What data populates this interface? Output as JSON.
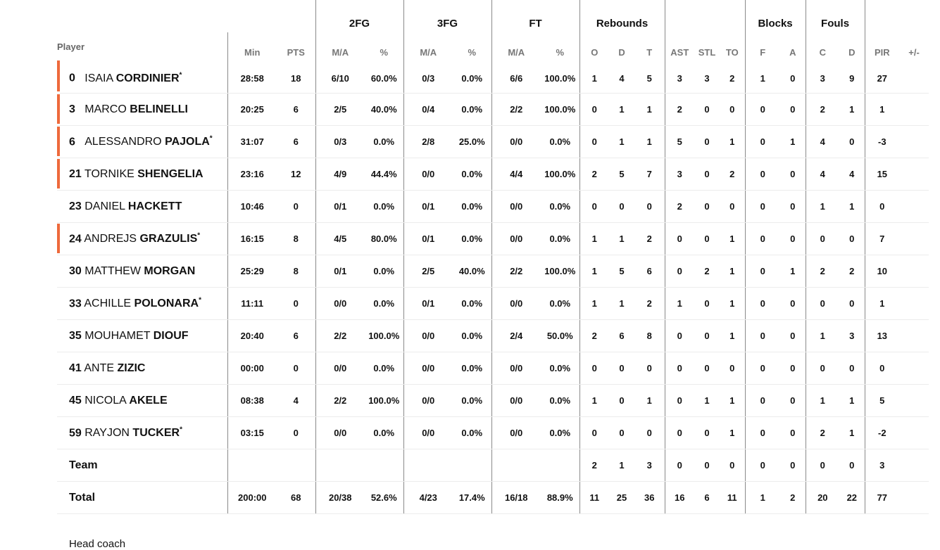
{
  "headers": {
    "groups": {
      "fg2": "2FG",
      "fg3": "3FG",
      "ft": "FT",
      "rebounds": "Rebounds",
      "blocks": "Blocks",
      "fouls": "Fouls"
    },
    "columns": {
      "player": "Player",
      "min": "Min",
      "pts": "PTS",
      "fg2_ma": "M/A",
      "fg2_pct": "%",
      "fg3_ma": "M/A",
      "fg3_pct": "%",
      "ft_ma": "M/A",
      "ft_pct": "%",
      "reb_o": "O",
      "reb_d": "D",
      "reb_t": "T",
      "ast": "AST",
      "stl": "STL",
      "to": "TO",
      "blk_f": "F",
      "blk_a": "A",
      "foul_c": "C",
      "foul_d": "D",
      "pir": "PIR",
      "pm": "+/-"
    }
  },
  "players": [
    {
      "num": "0",
      "first": "ISAIA",
      "last": "CORDINIER",
      "starter": true,
      "accent": true,
      "min": "28:58",
      "pts": "18",
      "fg2_ma": "6/10",
      "fg2_pct": "60.0%",
      "fg3_ma": "0/3",
      "fg3_pct": "0.0%",
      "ft_ma": "6/6",
      "ft_pct": "100.0%",
      "reb_o": "1",
      "reb_d": "4",
      "reb_t": "5",
      "ast": "3",
      "stl": "3",
      "to": "2",
      "blk_f": "1",
      "blk_a": "0",
      "foul_c": "3",
      "foul_d": "9",
      "pir": "27",
      "pm": ""
    },
    {
      "num": "3",
      "first": "MARCO",
      "last": "BELINELLI",
      "starter": false,
      "accent": true,
      "min": "20:25",
      "pts": "6",
      "fg2_ma": "2/5",
      "fg2_pct": "40.0%",
      "fg3_ma": "0/4",
      "fg3_pct": "0.0%",
      "ft_ma": "2/2",
      "ft_pct": "100.0%",
      "reb_o": "0",
      "reb_d": "1",
      "reb_t": "1",
      "ast": "2",
      "stl": "0",
      "to": "0",
      "blk_f": "0",
      "blk_a": "0",
      "foul_c": "2",
      "foul_d": "1",
      "pir": "1",
      "pm": ""
    },
    {
      "num": "6",
      "first": "ALESSANDRO",
      "last": "PAJOLA",
      "starter": true,
      "accent": true,
      "min": "31:07",
      "pts": "6",
      "fg2_ma": "0/3",
      "fg2_pct": "0.0%",
      "fg3_ma": "2/8",
      "fg3_pct": "25.0%",
      "ft_ma": "0/0",
      "ft_pct": "0.0%",
      "reb_o": "0",
      "reb_d": "1",
      "reb_t": "1",
      "ast": "5",
      "stl": "0",
      "to": "1",
      "blk_f": "0",
      "blk_a": "1",
      "foul_c": "4",
      "foul_d": "0",
      "pir": "-3",
      "pm": ""
    },
    {
      "num": "21",
      "first": "TORNIKE",
      "last": "SHENGELIA",
      "starter": false,
      "accent": true,
      "min": "23:16",
      "pts": "12",
      "fg2_ma": "4/9",
      "fg2_pct": "44.4%",
      "fg3_ma": "0/0",
      "fg3_pct": "0.0%",
      "ft_ma": "4/4",
      "ft_pct": "100.0%",
      "reb_o": "2",
      "reb_d": "5",
      "reb_t": "7",
      "ast": "3",
      "stl": "0",
      "to": "2",
      "blk_f": "0",
      "blk_a": "0",
      "foul_c": "4",
      "foul_d": "4",
      "pir": "15",
      "pm": ""
    },
    {
      "num": "23",
      "first": "DANIEL",
      "last": "HACKETT",
      "starter": false,
      "accent": false,
      "min": "10:46",
      "pts": "0",
      "fg2_ma": "0/1",
      "fg2_pct": "0.0%",
      "fg3_ma": "0/1",
      "fg3_pct": "0.0%",
      "ft_ma": "0/0",
      "ft_pct": "0.0%",
      "reb_o": "0",
      "reb_d": "0",
      "reb_t": "0",
      "ast": "2",
      "stl": "0",
      "to": "0",
      "blk_f": "0",
      "blk_a": "0",
      "foul_c": "1",
      "foul_d": "1",
      "pir": "0",
      "pm": ""
    },
    {
      "num": "24",
      "first": "ANDREJS",
      "last": "GRAZULIS",
      "starter": true,
      "accent": true,
      "min": "16:15",
      "pts": "8",
      "fg2_ma": "4/5",
      "fg2_pct": "80.0%",
      "fg3_ma": "0/1",
      "fg3_pct": "0.0%",
      "ft_ma": "0/0",
      "ft_pct": "0.0%",
      "reb_o": "1",
      "reb_d": "1",
      "reb_t": "2",
      "ast": "0",
      "stl": "0",
      "to": "1",
      "blk_f": "0",
      "blk_a": "0",
      "foul_c": "0",
      "foul_d": "0",
      "pir": "7",
      "pm": ""
    },
    {
      "num": "30",
      "first": "MATTHEW",
      "last": "MORGAN",
      "starter": false,
      "accent": false,
      "min": "25:29",
      "pts": "8",
      "fg2_ma": "0/1",
      "fg2_pct": "0.0%",
      "fg3_ma": "2/5",
      "fg3_pct": "40.0%",
      "ft_ma": "2/2",
      "ft_pct": "100.0%",
      "reb_o": "1",
      "reb_d": "5",
      "reb_t": "6",
      "ast": "0",
      "stl": "2",
      "to": "1",
      "blk_f": "0",
      "blk_a": "1",
      "foul_c": "2",
      "foul_d": "2",
      "pir": "10",
      "pm": ""
    },
    {
      "num": "33",
      "first": "ACHILLE",
      "last": "POLONARA",
      "starter": true,
      "accent": false,
      "min": "11:11",
      "pts": "0",
      "fg2_ma": "0/0",
      "fg2_pct": "0.0%",
      "fg3_ma": "0/1",
      "fg3_pct": "0.0%",
      "ft_ma": "0/0",
      "ft_pct": "0.0%",
      "reb_o": "1",
      "reb_d": "1",
      "reb_t": "2",
      "ast": "1",
      "stl": "0",
      "to": "1",
      "blk_f": "0",
      "blk_a": "0",
      "foul_c": "0",
      "foul_d": "0",
      "pir": "1",
      "pm": ""
    },
    {
      "num": "35",
      "first": "MOUHAMET",
      "last": "DIOUF",
      "starter": false,
      "accent": false,
      "min": "20:40",
      "pts": "6",
      "fg2_ma": "2/2",
      "fg2_pct": "100.0%",
      "fg3_ma": "0/0",
      "fg3_pct": "0.0%",
      "ft_ma": "2/4",
      "ft_pct": "50.0%",
      "reb_o": "2",
      "reb_d": "6",
      "reb_t": "8",
      "ast": "0",
      "stl": "0",
      "to": "1",
      "blk_f": "0",
      "blk_a": "0",
      "foul_c": "1",
      "foul_d": "3",
      "pir": "13",
      "pm": ""
    },
    {
      "num": "41",
      "first": "ANTE",
      "last": "ZIZIC",
      "starter": false,
      "accent": false,
      "min": "00:00",
      "pts": "0",
      "fg2_ma": "0/0",
      "fg2_pct": "0.0%",
      "fg3_ma": "0/0",
      "fg3_pct": "0.0%",
      "ft_ma": "0/0",
      "ft_pct": "0.0%",
      "reb_o": "0",
      "reb_d": "0",
      "reb_t": "0",
      "ast": "0",
      "stl": "0",
      "to": "0",
      "blk_f": "0",
      "blk_a": "0",
      "foul_c": "0",
      "foul_d": "0",
      "pir": "0",
      "pm": ""
    },
    {
      "num": "45",
      "first": "NICOLA",
      "last": "AKELE",
      "starter": false,
      "accent": false,
      "min": "08:38",
      "pts": "4",
      "fg2_ma": "2/2",
      "fg2_pct": "100.0%",
      "fg3_ma": "0/0",
      "fg3_pct": "0.0%",
      "ft_ma": "0/0",
      "ft_pct": "0.0%",
      "reb_o": "1",
      "reb_d": "0",
      "reb_t": "1",
      "ast": "0",
      "stl": "1",
      "to": "1",
      "blk_f": "0",
      "blk_a": "0",
      "foul_c": "1",
      "foul_d": "1",
      "pir": "5",
      "pm": ""
    },
    {
      "num": "59",
      "first": "RAYJON",
      "last": "TUCKER",
      "starter": true,
      "accent": false,
      "min": "03:15",
      "pts": "0",
      "fg2_ma": "0/0",
      "fg2_pct": "0.0%",
      "fg3_ma": "0/0",
      "fg3_pct": "0.0%",
      "ft_ma": "0/0",
      "ft_pct": "0.0%",
      "reb_o": "0",
      "reb_d": "0",
      "reb_t": "0",
      "ast": "0",
      "stl": "0",
      "to": "1",
      "blk_f": "0",
      "blk_a": "0",
      "foul_c": "2",
      "foul_d": "1",
      "pir": "-2",
      "pm": ""
    }
  ],
  "team": {
    "label": "Team",
    "min": "",
    "pts": "",
    "fg2_ma": "",
    "fg2_pct": "",
    "fg3_ma": "",
    "fg3_pct": "",
    "ft_ma": "",
    "ft_pct": "",
    "reb_o": "2",
    "reb_d": "1",
    "reb_t": "3",
    "ast": "0",
    "stl": "0",
    "to": "0",
    "blk_f": "0",
    "blk_a": "0",
    "foul_c": "0",
    "foul_d": "0",
    "pir": "3",
    "pm": ""
  },
  "total": {
    "label": "Total",
    "min": "200:00",
    "pts": "68",
    "fg2_ma": "20/38",
    "fg2_pct": "52.6%",
    "fg3_ma": "4/23",
    "fg3_pct": "17.4%",
    "ft_ma": "16/18",
    "ft_pct": "88.9%",
    "reb_o": "11",
    "reb_d": "25",
    "reb_t": "36",
    "ast": "16",
    "stl": "6",
    "to": "11",
    "blk_f": "1",
    "blk_a": "2",
    "foul_c": "20",
    "foul_d": "22",
    "pir": "77",
    "pm": ""
  },
  "footer": {
    "partial_text": "Head coach"
  },
  "colors": {
    "starter_accent": "#ee6a3c",
    "divider": "#8a8a8a",
    "row_border": "#ececec"
  }
}
